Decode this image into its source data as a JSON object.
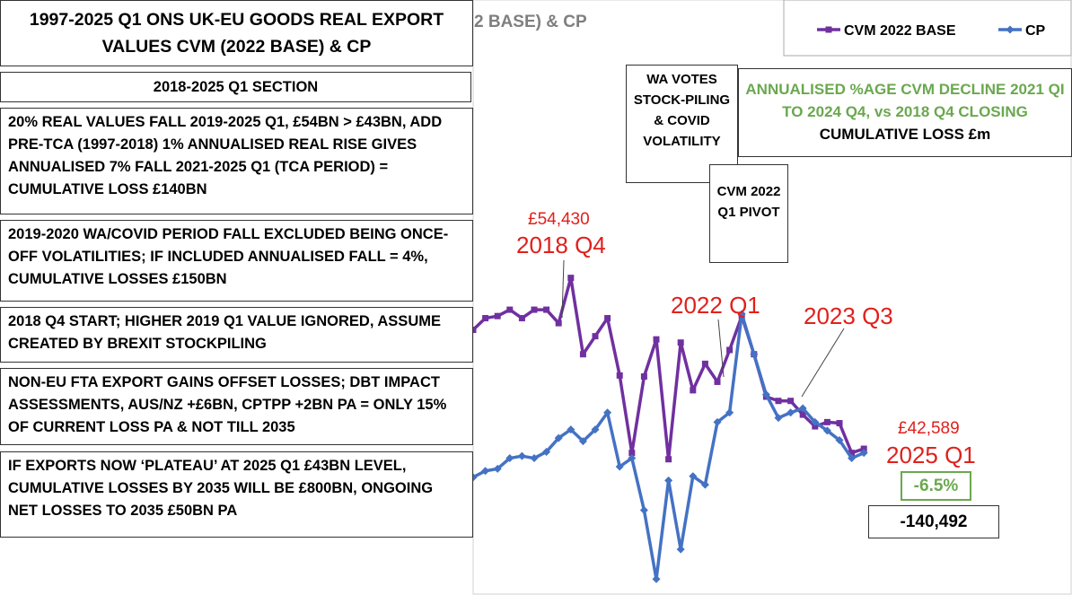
{
  "chart_data": {
    "type": "line",
    "title": "2 BASE) & CP",
    "categories": [
      null,
      null,
      null,
      null,
      null,
      null,
      null,
      null,
      null,
      null,
      null,
      null,
      null,
      null,
      null,
      null,
      null,
      null,
      null,
      null,
      null,
      null,
      null,
      null,
      null,
      null,
      null,
      null,
      null,
      null,
      null,
      null,
      null
    ],
    "series": [
      {
        "name": "CVM 2022 BASE",
        "color": "#7030a0",
        "marker": "square",
        "values": [
          53800,
          54900,
          55100,
          55700,
          54900,
          55700,
          55700,
          54430,
          58700,
          51500,
          53200,
          54900,
          49500,
          42200,
          49400,
          52900,
          41600,
          52600,
          48100,
          50600,
          48900,
          51900,
          55100,
          51500,
          47500,
          47100,
          47100,
          45800,
          44700,
          45100,
          45000,
          42200,
          42589
        ]
      },
      {
        "name": "CP",
        "color": "#4472c4",
        "marker": "diamond",
        "values": [
          39900,
          40500,
          40700,
          41700,
          41900,
          41700,
          42300,
          43600,
          44400,
          43300,
          44400,
          46000,
          40900,
          41700,
          36800,
          30300,
          39600,
          33100,
          40000,
          39200,
          45100,
          46000,
          55300,
          51500,
          47700,
          45500,
          46000,
          46400,
          45100,
          44300,
          43400,
          41700,
          42200
        ]
      }
    ],
    "ylim": [
      28800,
      84900
    ],
    "legend": "top-right",
    "annotations": [
      "£54,430",
      "2018 Q4",
      "2022 Q1",
      "2023 Q3",
      "£42,589",
      "2025 Q1"
    ],
    "callouts": [
      "WA VOTES STOCK-PILING & COVID VOLATILITY",
      "CVM 2022 Q1 PIVOT"
    ],
    "summary": {
      "heading": "ANNUALISED %AGE CVM DECLINE 2021 QI TO 2024 Q4, vs 2018 Q4 CLOSING",
      "subheading": "CUMULATIVE LOSS £m",
      "decline": "-6.5%",
      "loss": "-140,492"
    }
  },
  "left_panel": {
    "title": "1997-2025 Q1 ONS UK-EU GOODS REAL EXPORT VALUES CVM (2022 BASE) & CP",
    "section": "2018-2025 Q1 SECTION",
    "notes": [
      "20% REAL VALUES FALL 2019-2025 Q1, £54BN > £43BN, ADD PRE-TCA (1997-2018) 1% ANNUALISED REAL RISE GIVES ANNUALISED 7% FALL 2021-2025 Q1 (TCA PERIOD) = CUMULATIVE LOSS £140BN",
      "2019-2020 WA/COVID PERIOD FALL EXCLUDED BEING ONCE-OFF VOLATILITIES; IF INCLUDED ANNUALISED FALL = 4%, CUMULATIVE LOSSES £150BN",
      "2018 Q4 START; HIGHER 2019 Q1 VALUE IGNORED, ASSUME CREATED BY BREXIT STOCKPILING",
      "NON-EU FTA EXPORT GAINS OFFSET LOSSES; DBT IMPACT ASSESSMENTS, AUS/NZ +£6BN, CPTPP +2BN PA = ONLY 15% OF CURRENT LOSS PA & NOT TILL 2035",
      "IF EXPORTS NOW ‘PLATEAU’ AT 2025 Q1 £43BN LEVEL, CUMULATIVE LOSSES BY 2035 WILL BE £800BN, ONGOING NET LOSSES TO 2035 £50BN PA"
    ]
  }
}
